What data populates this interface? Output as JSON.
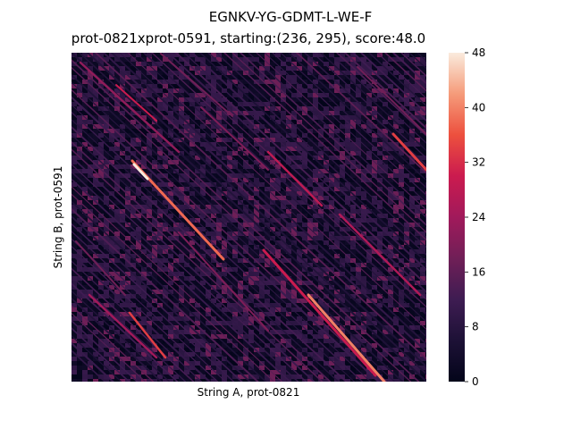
{
  "chart_data": {
    "type": "heatmap",
    "suptitle": "EGNKV-YG-GDMT-L-WE-F",
    "title": "prot-0821xprot-0591, starting:(236, 295), score:48.0",
    "xlabel": "String A, prot-0821",
    "ylabel": "String B, prot-0591",
    "colorbar": {
      "min": 0,
      "max": 48,
      "ticks": [
        "0",
        "8",
        "16",
        "24",
        "32",
        "40",
        "48"
      ],
      "colormap": "rocket"
    },
    "colors": {
      "low": "#03051a",
      "mid": "#cb1b4f",
      "high": "#faebdd"
    },
    "x_ticks_visible": false,
    "y_ticks_visible": false
  }
}
